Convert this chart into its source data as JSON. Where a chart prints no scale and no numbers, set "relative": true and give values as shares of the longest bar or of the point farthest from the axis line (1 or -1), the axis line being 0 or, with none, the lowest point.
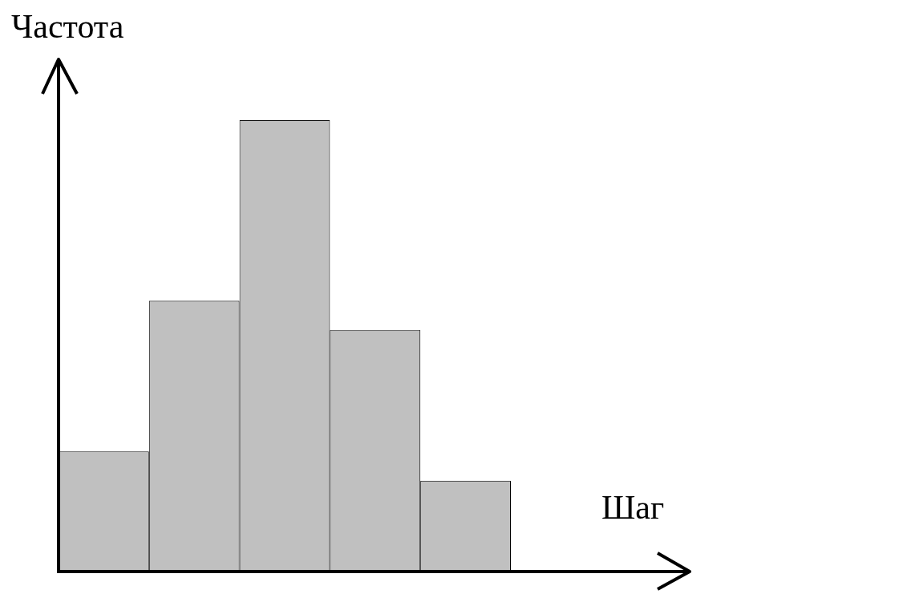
{
  "chart_data": {
    "type": "bar",
    "xlabel": "Шаг",
    "ylabel": "Частота",
    "relative": true,
    "categories": [
      null,
      null,
      null,
      null,
      null
    ],
    "values": [
      0.266,
      0.6,
      1,
      0.535,
      0.201
    ],
    "color": "#c0c0c0"
  }
}
